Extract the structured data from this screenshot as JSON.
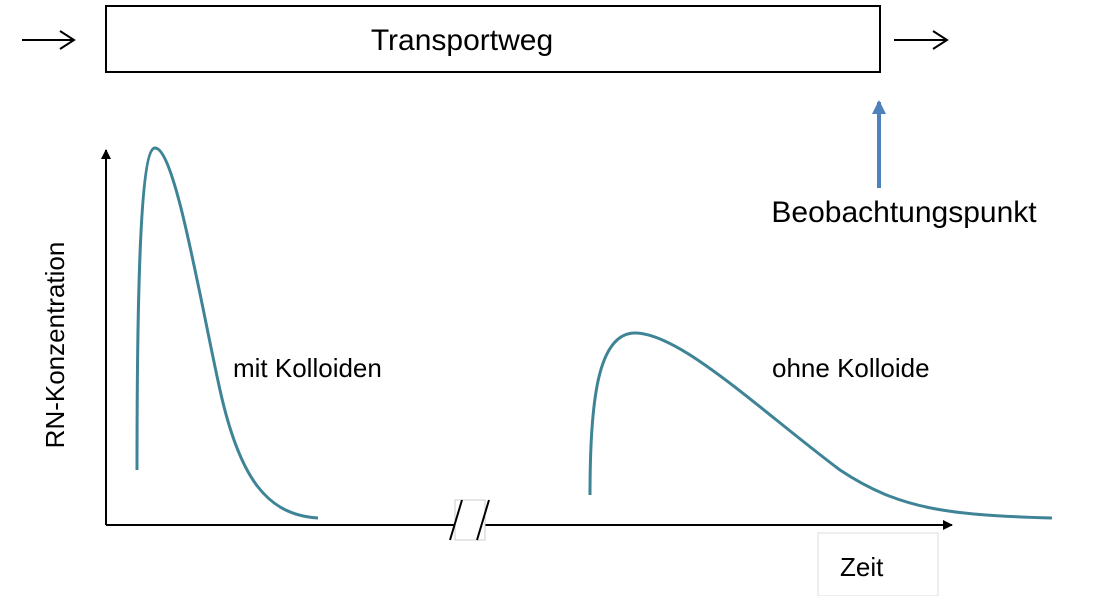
{
  "header": {
    "title": "Transportweg"
  },
  "observation": {
    "label": "Beobachtungspunkt"
  },
  "axes": {
    "y_label": "RN-Konzentration",
    "x_label": "Zeit"
  },
  "curves": [
    {
      "label": "mit Kolloiden"
    },
    {
      "label": "ohne Kolloide"
    }
  ]
}
